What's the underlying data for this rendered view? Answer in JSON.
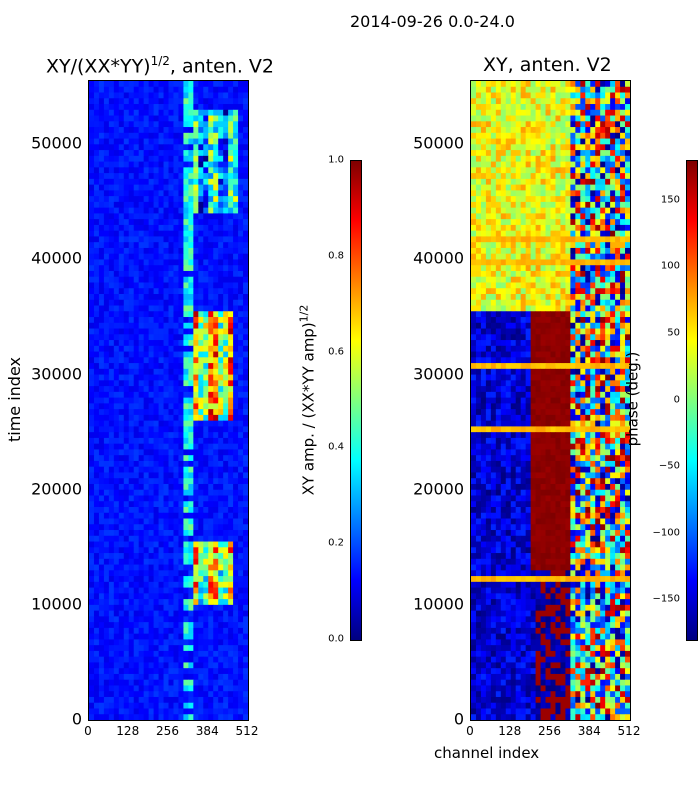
{
  "figure": {
    "suptitle": "2014-09-26 0.0-24.0"
  },
  "colors": {
    "jet": [
      "#00007f",
      "#0000ff",
      "#007fff",
      "#00ffff",
      "#7fff7f",
      "#ffff00",
      "#ff7f00",
      "#ff0000",
      "#7f0000"
    ],
    "axis": "#000000"
  },
  "chart_data": [
    {
      "type": "heatmap",
      "title_text": "XY/(XX*YY)",
      "title_exp": "1/2",
      "title_suffix": ", anten. V2",
      "ylabel": "time index",
      "xlabel": "",
      "xlim": [
        0,
        512
      ],
      "ylim": [
        0,
        55500
      ],
      "xticks": [
        "0",
        "128",
        "256",
        "384",
        "512"
      ],
      "yticks": [
        "0",
        "10000",
        "20000",
        "30000",
        "40000",
        "50000"
      ],
      "ytick_values": [
        0,
        10000,
        20000,
        30000,
        40000,
        50000
      ],
      "colorbar": {
        "label_text": "XY amp. / (XX*YY amp)",
        "label_exp": "1/2",
        "range": [
          0.0,
          1.0
        ],
        "ticks": [
          "0.0",
          "0.2",
          "0.4",
          "0.6",
          "0.8",
          "1.0"
        ],
        "tick_values": [
          0.0,
          0.2,
          0.4,
          0.6,
          0.8,
          1.0
        ]
      },
      "features": [
        {
          "desc": "high amplitude band",
          "channels": [
            330,
            470
          ],
          "time": [
            10000,
            15500
          ],
          "level": 0.7
        },
        {
          "desc": "high amplitude band",
          "channels": [
            330,
            470
          ],
          "time": [
            26000,
            35500
          ],
          "level": 0.75
        },
        {
          "desc": "moderate amplitude",
          "channels": [
            330,
            480
          ],
          "time": [
            44000,
            53000
          ],
          "level": 0.45
        },
        {
          "desc": "background",
          "channels": [
            0,
            512
          ],
          "time": [
            0,
            55500
          ],
          "level": 0.1
        }
      ]
    },
    {
      "type": "heatmap",
      "title_text": "XY, anten. V2",
      "ylabel": "",
      "xlabel": "channel index",
      "xlim": [
        0,
        512
      ],
      "ylim": [
        0,
        55500
      ],
      "xticks": [
        "0",
        "128",
        "256",
        "384",
        "512"
      ],
      "yticks": [
        "0",
        "10000",
        "20000",
        "30000",
        "40000",
        "50000"
      ],
      "ytick_values": [
        0,
        10000,
        20000,
        30000,
        40000,
        50000
      ],
      "colorbar": {
        "label": "phase (deg.)",
        "range": [
          -180,
          180
        ],
        "ticks": [
          "−150",
          "−100",
          "−50",
          "0",
          "50",
          "100",
          "150"
        ],
        "tick_values": [
          -150,
          -100,
          -50,
          0,
          50,
          100,
          150
        ]
      },
      "features": [
        {
          "desc": "yellow/green phase region",
          "channels": [
            0,
            320
          ],
          "time": [
            35500,
            55500
          ],
          "level": 60
        },
        {
          "desc": "dark red phase region",
          "channels": [
            200,
            320
          ],
          "time": [
            13000,
            35500
          ],
          "level": 170
        },
        {
          "desc": "blue phase region",
          "channels": [
            0,
            200
          ],
          "time": [
            0,
            35500
          ],
          "level": -150
        },
        {
          "desc": "mixed striped region",
          "channels": [
            320,
            512
          ],
          "time": [
            0,
            55500
          ],
          "level": 0
        }
      ]
    }
  ]
}
